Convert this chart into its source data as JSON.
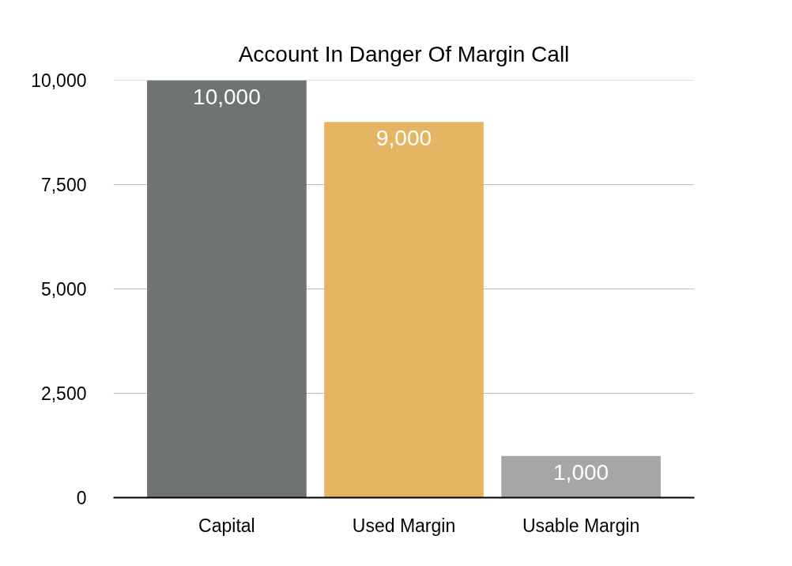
{
  "chart_data": {
    "type": "bar",
    "title": "Account In Danger Of Margin Call",
    "categories": [
      "Capital",
      "Used Margin",
      "Usable Margin"
    ],
    "values": [
      10000,
      9000,
      1000
    ],
    "colors": [
      "#6f7471",
      "#e6b563",
      "#a6a6a6"
    ],
    "value_labels": [
      "10,000",
      "9,000",
      "1,000"
    ],
    "ylim": [
      0,
      10000
    ],
    "yticks": [
      0,
      {
        "value": 2500,
        "label": "2,500"
      },
      {
        "value": 5000,
        "label": "5,000"
      },
      {
        "value": 7500,
        "label": "7,500"
      },
      {
        "value": 10000,
        "label": "10,000"
      }
    ],
    "grid": "y"
  }
}
